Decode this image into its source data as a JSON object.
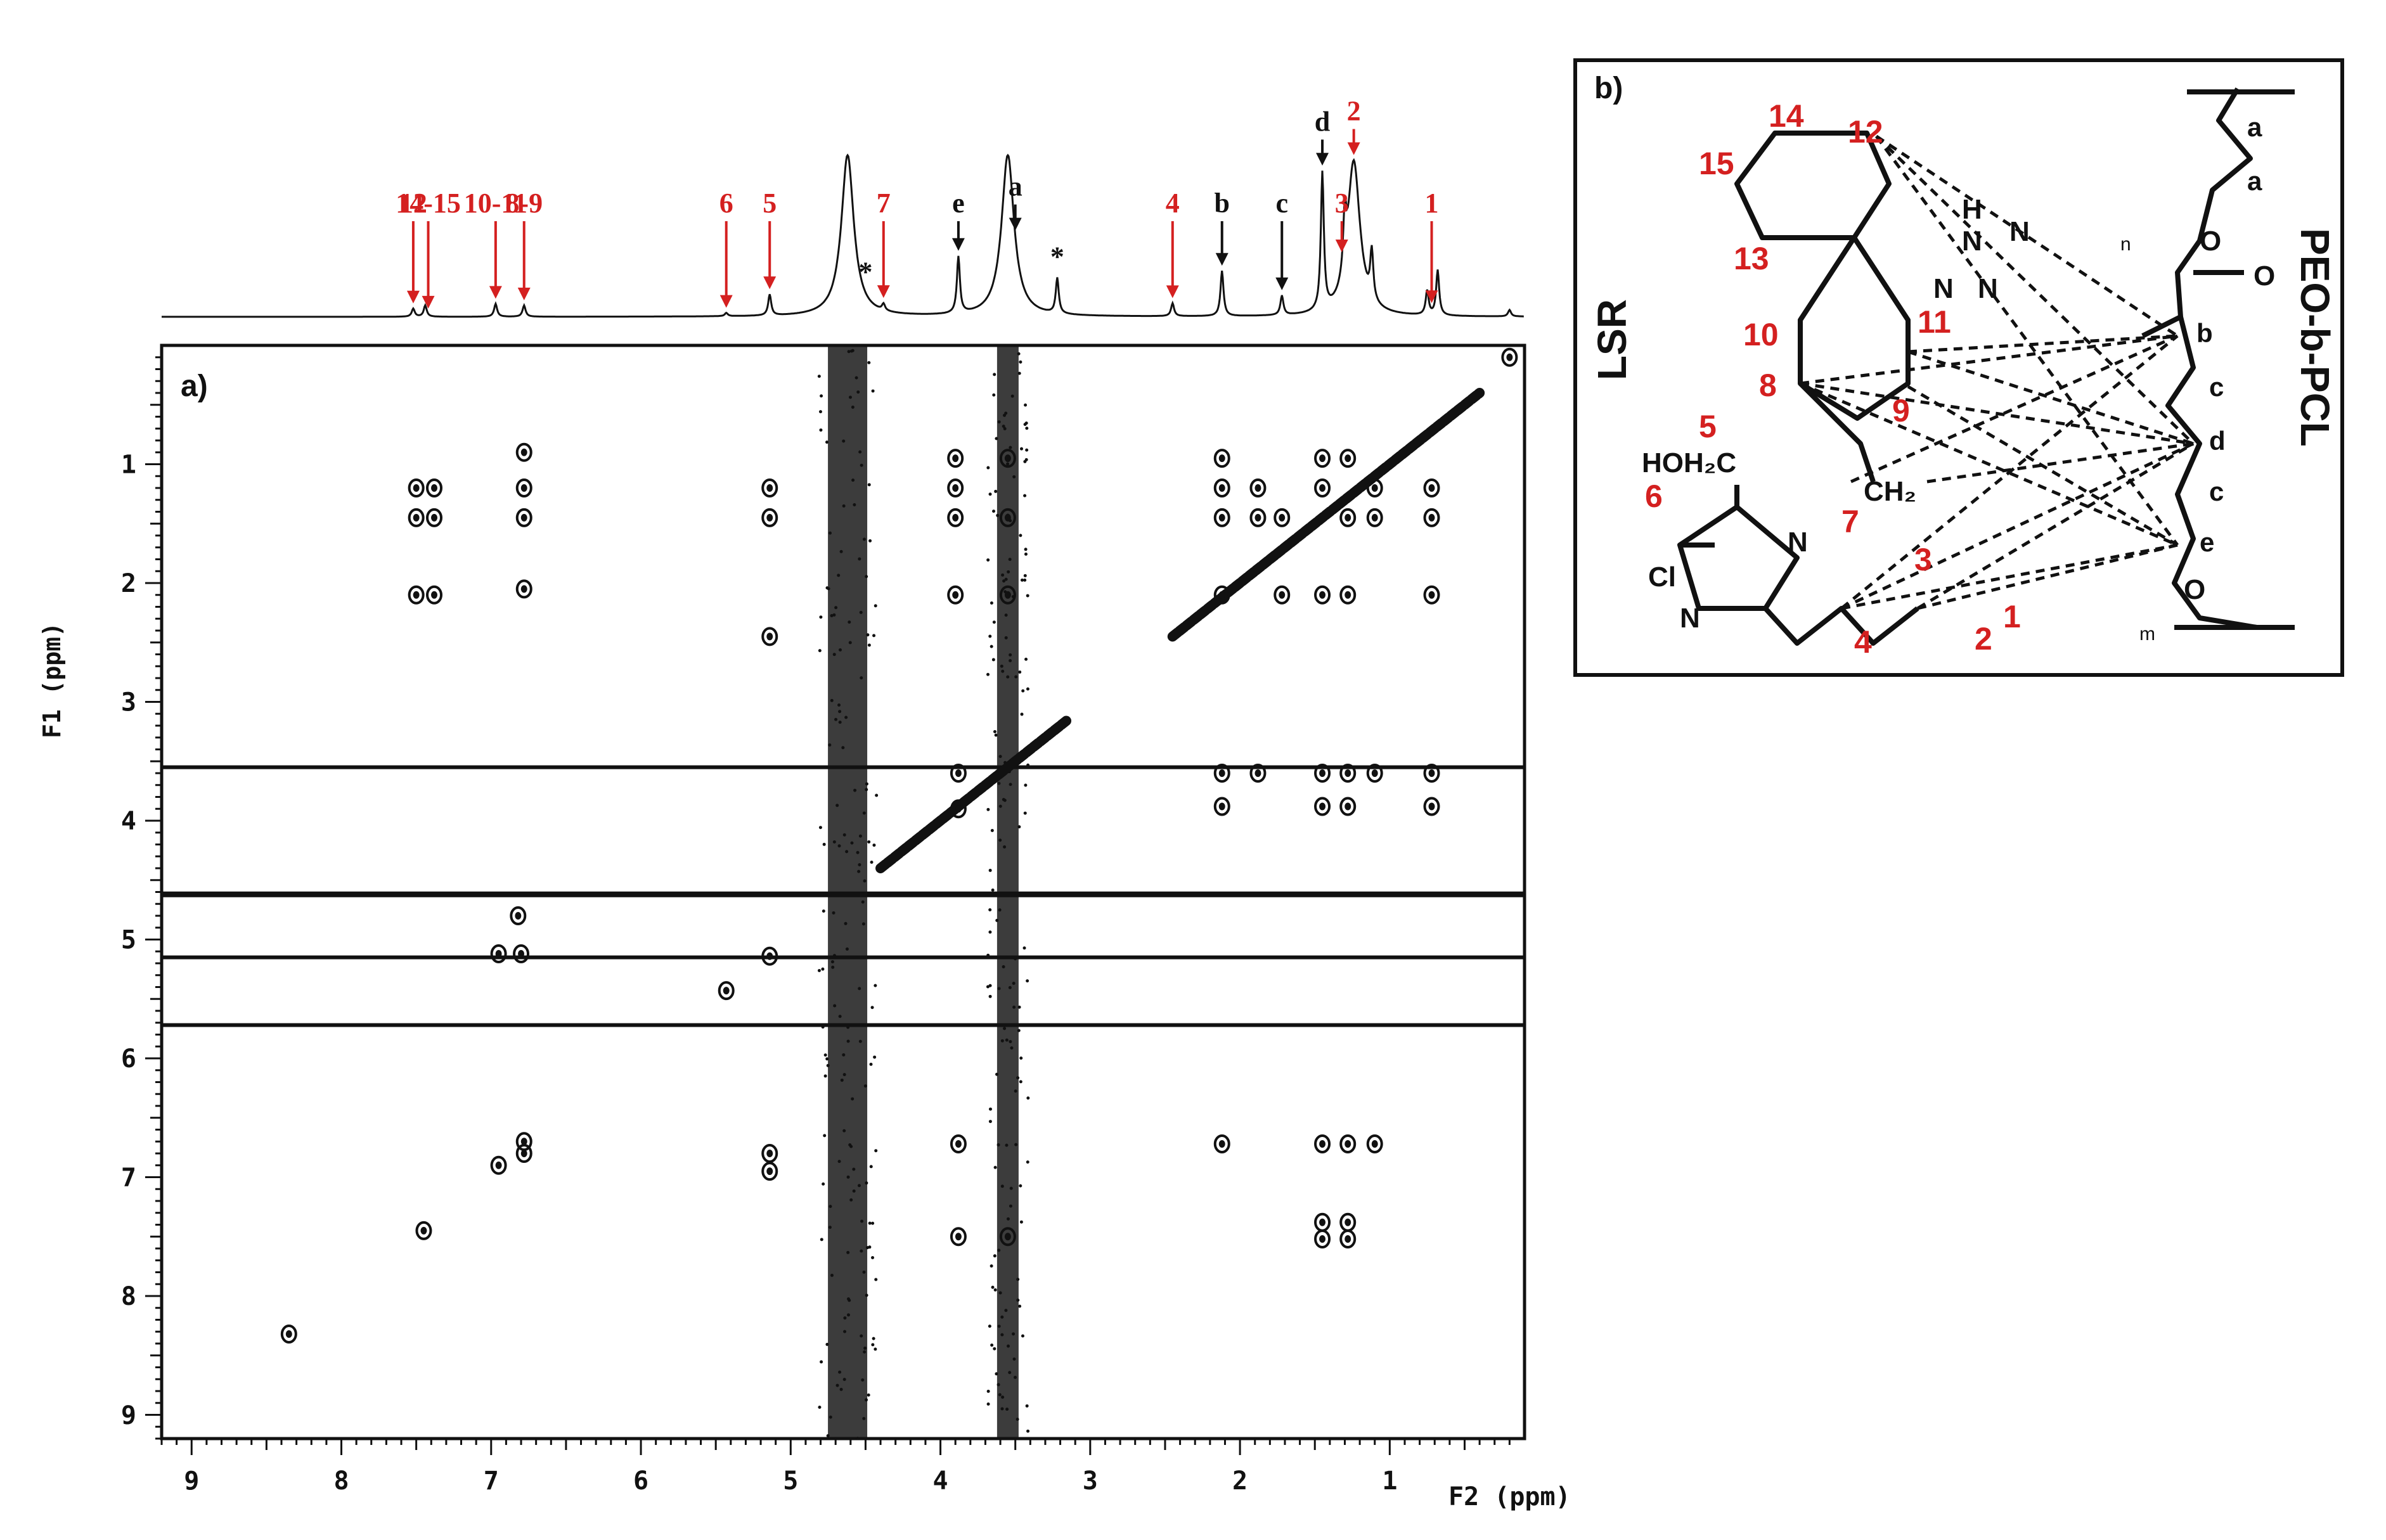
{
  "figure": {
    "panel_a_label": "a)",
    "panel_b_label": "b)"
  },
  "chart_data": {
    "type": "scatter",
    "subtype": "2D NMR (NOESY) contour plot with 1D 1H projection",
    "title": "",
    "xlabel": "F2 (ppm)",
    "ylabel": "F1 (ppm)",
    "xlim": [
      9.2,
      0.1
    ],
    "ylim": [
      0.0,
      9.2
    ],
    "x_reversed": true,
    "y_reversed": true,
    "xticks": [
      9,
      8,
      7,
      6,
      5,
      4,
      3,
      2,
      1
    ],
    "yticks": [
      1,
      2,
      3,
      4,
      5,
      6,
      7,
      8,
      9
    ],
    "colors": {
      "red_labels": "#d42020",
      "black_labels": "#111111",
      "contours": "#111111"
    },
    "projection_labels": [
      {
        "text": "12",
        "ppm": 7.52,
        "color": "red"
      },
      {
        "text": "14-15",
        "ppm": 7.42,
        "color": "red"
      },
      {
        "text": "10-11",
        "ppm": 6.97,
        "color": "red"
      },
      {
        "text": "8-9",
        "ppm": 6.78,
        "color": "red"
      },
      {
        "text": "6",
        "ppm": 5.43,
        "color": "red"
      },
      {
        "text": "5",
        "ppm": 5.14,
        "color": "red"
      },
      {
        "text": "*",
        "ppm": 4.5,
        "color": "black"
      },
      {
        "text": "7",
        "ppm": 4.38,
        "color": "red"
      },
      {
        "text": "e",
        "ppm": 3.88,
        "color": "black"
      },
      {
        "text": "a",
        "ppm": 3.5,
        "color": "black"
      },
      {
        "text": "*",
        "ppm": 3.22,
        "color": "black"
      },
      {
        "text": "4",
        "ppm": 2.45,
        "color": "red"
      },
      {
        "text": "b",
        "ppm": 2.12,
        "color": "black"
      },
      {
        "text": "c",
        "ppm": 1.72,
        "color": "black"
      },
      {
        "text": "d",
        "ppm": 1.45,
        "color": "black"
      },
      {
        "text": "3",
        "ppm": 1.32,
        "color": "red"
      },
      {
        "text": "2",
        "ppm": 1.24,
        "color": "red"
      },
      {
        "text": "1",
        "ppm": 0.72,
        "color": "red"
      }
    ],
    "projection_peaks": [
      {
        "ppm": 7.52,
        "height": 0.05
      },
      {
        "ppm": 7.44,
        "height": 0.07
      },
      {
        "ppm": 6.97,
        "height": 0.08
      },
      {
        "ppm": 6.78,
        "height": 0.07
      },
      {
        "ppm": 5.43,
        "height": 0.02
      },
      {
        "ppm": 5.14,
        "height": 0.13
      },
      {
        "ppm": 4.62,
        "height": 1.0
      },
      {
        "ppm": 4.38,
        "height": 0.04
      },
      {
        "ppm": 3.88,
        "height": 0.35
      },
      {
        "ppm": 3.55,
        "height": 1.0
      },
      {
        "ppm": 3.22,
        "height": 0.22
      },
      {
        "ppm": 2.45,
        "height": 0.08
      },
      {
        "ppm": 2.12,
        "height": 0.28
      },
      {
        "ppm": 1.72,
        "height": 0.12
      },
      {
        "ppm": 1.45,
        "height": 0.85
      },
      {
        "ppm": 1.3,
        "height": 0.35
      },
      {
        "ppm": 1.24,
        "height": 0.95
      },
      {
        "ppm": 1.12,
        "height": 0.3
      },
      {
        "ppm": 0.75,
        "height": 0.15
      },
      {
        "ppm": 0.68,
        "height": 0.28
      },
      {
        "ppm": 0.2,
        "height": 0.04
      }
    ],
    "ridges_vertical_f2": [
      4.62,
      3.55
    ],
    "ridges_horizontal_f1": [
      3.55,
      4.62,
      5.15,
      5.72
    ],
    "diagonal_segments": [
      [
        2.45,
        0.4
      ],
      [
        4.4,
        3.15
      ]
    ],
    "cross_peaks": [
      {
        "x": 7.45,
        "y": 7.45
      },
      {
        "x": 8.35,
        "y": 8.32
      },
      {
        "x": 6.95,
        "y": 6.9
      },
      {
        "x": 6.78,
        "y": 6.8
      },
      {
        "x": 6.78,
        "y": 6.7
      },
      {
        "x": 6.78,
        "y": 0.9
      },
      {
        "x": 6.78,
        "y": 1.2
      },
      {
        "x": 6.78,
        "y": 1.45
      },
      {
        "x": 6.78,
        "y": 2.05
      },
      {
        "x": 6.82,
        "y": 4.8
      },
      {
        "x": 6.95,
        "y": 5.12
      },
      {
        "x": 6.8,
        "y": 5.12
      },
      {
        "x": 7.5,
        "y": 1.2
      },
      {
        "x": 7.5,
        "y": 1.45
      },
      {
        "x": 7.38,
        "y": 1.2
      },
      {
        "x": 7.38,
        "y": 1.45
      },
      {
        "x": 7.5,
        "y": 2.1
      },
      {
        "x": 7.38,
        "y": 2.1
      },
      {
        "x": 5.14,
        "y": 1.2
      },
      {
        "x": 5.14,
        "y": 1.45
      },
      {
        "x": 5.14,
        "y": 5.14
      },
      {
        "x": 5.43,
        "y": 5.43
      },
      {
        "x": 5.14,
        "y": 6.8
      },
      {
        "x": 5.14,
        "y": 6.95
      },
      {
        "x": 5.14,
        "y": 2.45
      },
      {
        "x": 3.9,
        "y": 0.95
      },
      {
        "x": 3.9,
        "y": 1.2
      },
      {
        "x": 3.9,
        "y": 1.45
      },
      {
        "x": 3.9,
        "y": 2.1
      },
      {
        "x": 3.88,
        "y": 3.6
      },
      {
        "x": 3.88,
        "y": 3.9
      },
      {
        "x": 3.88,
        "y": 6.72
      },
      {
        "x": 3.88,
        "y": 7.5
      },
      {
        "x": 3.55,
        "y": 0.95
      },
      {
        "x": 3.55,
        "y": 1.45
      },
      {
        "x": 3.55,
        "y": 2.1
      },
      {
        "x": 3.55,
        "y": 7.5
      },
      {
        "x": 2.12,
        "y": 0.95
      },
      {
        "x": 2.12,
        "y": 1.2
      },
      {
        "x": 2.12,
        "y": 1.45
      },
      {
        "x": 2.12,
        "y": 2.1
      },
      {
        "x": 2.12,
        "y": 3.6
      },
      {
        "x": 2.12,
        "y": 3.88
      },
      {
        "x": 1.88,
        "y": 1.2
      },
      {
        "x": 1.88,
        "y": 1.45
      },
      {
        "x": 1.88,
        "y": 3.6
      },
      {
        "x": 1.72,
        "y": 1.45
      },
      {
        "x": 1.72,
        "y": 2.1
      },
      {
        "x": 1.45,
        "y": 0.95
      },
      {
        "x": 1.45,
        "y": 1.2
      },
      {
        "x": 1.45,
        "y": 2.1
      },
      {
        "x": 1.45,
        "y": 3.6
      },
      {
        "x": 1.45,
        "y": 3.88
      },
      {
        "x": 1.28,
        "y": 0.95
      },
      {
        "x": 1.28,
        "y": 1.45
      },
      {
        "x": 1.28,
        "y": 2.1
      },
      {
        "x": 1.28,
        "y": 3.6
      },
      {
        "x": 1.28,
        "y": 3.88
      },
      {
        "x": 1.1,
        "y": 1.2
      },
      {
        "x": 1.1,
        "y": 1.45
      },
      {
        "x": 1.1,
        "y": 3.6
      },
      {
        "x": 0.72,
        "y": 1.2
      },
      {
        "x": 0.72,
        "y": 1.45
      },
      {
        "x": 0.72,
        "y": 2.1
      },
      {
        "x": 0.72,
        "y": 3.6
      },
      {
        "x": 0.72,
        "y": 3.88
      },
      {
        "x": 2.12,
        "y": 6.72
      },
      {
        "x": 1.45,
        "y": 6.72
      },
      {
        "x": 1.28,
        "y": 6.72
      },
      {
        "x": 1.1,
        "y": 6.72
      },
      {
        "x": 1.45,
        "y": 7.38
      },
      {
        "x": 1.45,
        "y": 7.52
      },
      {
        "x": 1.28,
        "y": 7.38
      },
      {
        "x": 1.28,
        "y": 7.52
      },
      {
        "x": 0.2,
        "y": 0.1
      }
    ]
  },
  "structure_b": {
    "left_title": "LSR",
    "right_title": "PEO-b-PCL",
    "atom_labels": {
      "HOH2C": "HOH₂C",
      "Cl": "Cl",
      "N_ring1": "N",
      "N_ring2": "N",
      "CH2": "CH₂",
      "tetrazole_H": "H",
      "tetrazole_N1": "N",
      "tetrazole_N2": "N",
      "tetrazole_N3": "N",
      "tetrazole_N4": "N",
      "O_ester": "O",
      "O_carbonyl": "O",
      "O_ether": "O",
      "n_upper": "n",
      "n_lower": "m"
    },
    "red_numbers": [
      "1",
      "2",
      "3",
      "4",
      "5",
      "6",
      "7",
      "8",
      "9",
      "10",
      "11",
      "12",
      "13",
      "14",
      "15"
    ],
    "black_letters": [
      "a",
      "a",
      "b",
      "c",
      "d",
      "c",
      "e"
    ]
  }
}
